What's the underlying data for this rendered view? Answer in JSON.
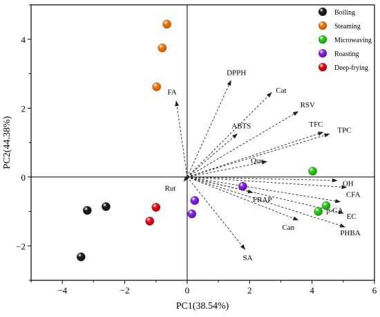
{
  "chart_data": {
    "type": "scatter",
    "title": "",
    "xlabel": "PC1(38.54%)",
    "ylabel": "PC2(44.38%)",
    "xlim": [
      -5,
      6
    ],
    "ylim": [
      -3,
      5
    ],
    "xticks": [
      -4,
      -2,
      0,
      2,
      4,
      6
    ],
    "yticks": [
      -2,
      0,
      2,
      4
    ],
    "legend_position": "top-right",
    "reference_lines": {
      "x": 0,
      "y": 0
    },
    "series": [
      {
        "name": "Boiling",
        "color": "#1a1a1a",
        "points": [
          [
            -3.2,
            -0.97
          ],
          [
            -2.6,
            -0.86
          ],
          [
            -3.4,
            -2.32
          ]
        ]
      },
      {
        "name": "Steaming",
        "color": "#f07a10",
        "points": [
          [
            -0.65,
            4.44
          ],
          [
            -0.8,
            3.75
          ],
          [
            -0.98,
            2.62
          ]
        ]
      },
      {
        "name": "Microwaving",
        "color": "#2ecc1a",
        "points": [
          [
            4.02,
            0.17
          ],
          [
            4.45,
            -0.83
          ],
          [
            4.2,
            -1.0
          ]
        ]
      },
      {
        "name": "Roasting",
        "color": "#8a2be2",
        "points": [
          [
            1.78,
            -0.27
          ],
          [
            0.24,
            -0.68
          ],
          [
            0.15,
            -1.07
          ]
        ]
      },
      {
        "name": "Deep-frying",
        "color": "#e8101a",
        "points": [
          [
            -1.0,
            -0.88
          ],
          [
            -1.2,
            -1.28
          ]
        ]
      }
    ],
    "loadings": [
      {
        "label": "DPPH",
        "x": 1.4,
        "y": 2.8
      },
      {
        "label": "Cat",
        "x": 2.7,
        "y": 2.45
      },
      {
        "label": "RSV",
        "x": 3.55,
        "y": 1.9
      },
      {
        "label": "ABTS",
        "x": 1.6,
        "y": 1.25
      },
      {
        "label": "TFC",
        "x": 4.35,
        "y": 1.3
      },
      {
        "label": "TPC",
        "x": 4.55,
        "y": 1.25
      },
      {
        "label": "Que",
        "x": 2.55,
        "y": 0.45
      },
      {
        "label": "FA",
        "x": -0.35,
        "y": 2.2
      },
      {
        "label": "Rut",
        "x": -0.1,
        "y": -0.12
      },
      {
        "label": "OH",
        "x": 4.8,
        "y": -0.1
      },
      {
        "label": "CFA",
        "x": 5.1,
        "y": -0.3
      },
      {
        "label": "FRAP",
        "x": 2.1,
        "y": -0.45
      },
      {
        "label": "p-CA",
        "x": 4.9,
        "y": -0.72
      },
      {
        "label": "EC",
        "x": 5.0,
        "y": -1.05
      },
      {
        "label": "Can",
        "x": 3.55,
        "y": -1.25
      },
      {
        "label": "PHBA",
        "x": 5.05,
        "y": -1.45
      },
      {
        "label": "SA",
        "x": 1.85,
        "y": -2.1
      }
    ]
  }
}
